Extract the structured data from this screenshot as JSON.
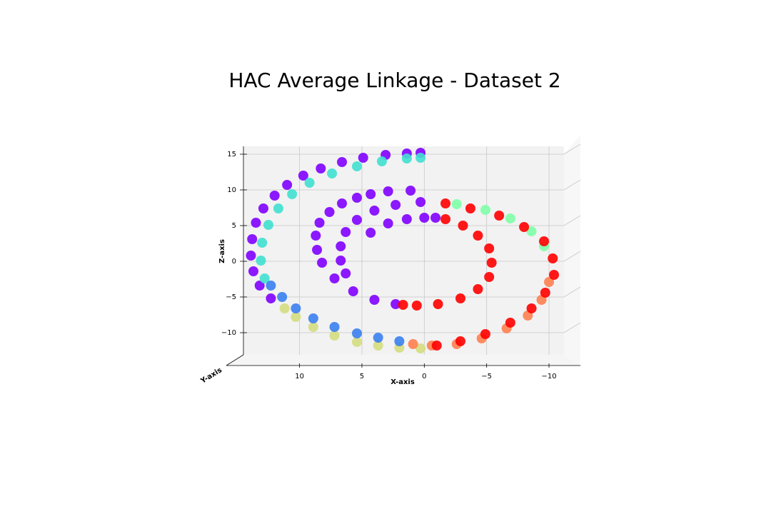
{
  "chart_data": {
    "type": "scatter",
    "title": "HAC Average Linkage - Dataset 2",
    "x_label": "X-axis",
    "y_label": "Y-axis",
    "z_label": "Z-axis",
    "xlim": [
      14.5,
      -11.2
    ],
    "xticks": [
      10,
      5,
      0,
      {
        "value": -5,
        "label": "−5"
      },
      {
        "value": -10,
        "label": "−10"
      }
    ],
    "ylim": [
      -13.1,
      16.1
    ],
    "yticks": [
      {
        "value": -10,
        "label": "−10"
      },
      {
        "value": -5,
        "label": "−5"
      },
      0,
      5,
      10,
      15
    ],
    "grid": true,
    "series": [
      {
        "color": "#8000ff",
        "x": [
          4.3,
          2.9,
          1.4,
          0,
          -0.9,
          2.3,
          4.0,
          5.7,
          7.2,
          8.2,
          8.6,
          8.7,
          8.4,
          7.6,
          6.6,
          5.4,
          4.3,
          2.9,
          1.1,
          6.3,
          6.7,
          6.7,
          6.3,
          5.4,
          4.0,
          2.3,
          0.3,
          12.3,
          13.2,
          13.7,
          13.9,
          13.8,
          13.5,
          12.9,
          12.0,
          11.0,
          9.7,
          8.3,
          6.6,
          4.9,
          3.1,
          1.4,
          0.3
        ],
        "y": [
          4.0,
          5.3,
          5.9,
          6.1,
          6.1,
          -6.0,
          -5.4,
          -4.2,
          -2.4,
          -0.2,
          1.6,
          3.6,
          5.4,
          6.9,
          8.1,
          8.9,
          9.4,
          9.8,
          9.9,
          -1.7,
          0.1,
          2.1,
          4.1,
          5.8,
          7.1,
          7.9,
          8.3,
          -5.2,
          -3.4,
          -1.4,
          0.8,
          3.1,
          5.4,
          7.4,
          9.2,
          10.7,
          12.0,
          13.0,
          13.9,
          14.5,
          14.9,
          15.1,
          15.2
        ]
      },
      {
        "color": "#40e0d0",
        "x": [
          12.8,
          13.1,
          13.0,
          12.5,
          11.7,
          10.6,
          9.2,
          7.4,
          5.4,
          3.4,
          1.4,
          0.3
        ],
        "y": [
          -2.4,
          0.1,
          2.6,
          5.1,
          7.4,
          9.4,
          11.0,
          12.3,
          13.3,
          14.0,
          14.4,
          14.5
        ]
      },
      {
        "color": "#80ffa8",
        "x": [
          -2.6,
          -4.9,
          -6.9,
          -8.6,
          -9.6
        ],
        "y": [
          8.0,
          7.2,
          6.0,
          4.2,
          2.1
        ]
      },
      {
        "color": "#d4dd80",
        "x": [
          0.3,
          2.0,
          3.7,
          5.4,
          7.2,
          8.9,
          10.3,
          11.2
        ],
        "y": [
          -12.2,
          -12.1,
          -11.8,
          -11.3,
          -10.4,
          -9.2,
          -7.8,
          -6.6
        ]
      },
      {
        "color": "#3a80f0",
        "x": [
          2.0,
          3.7,
          5.4,
          7.2,
          8.9,
          10.3,
          11.4,
          12.3
        ],
        "y": [
          -11.2,
          -10.7,
          -10.1,
          -9.2,
          -8.0,
          -6.6,
          -5.0,
          -3.4
        ]
      },
      {
        "color": "#ff8050",
        "x": [
          -10.0,
          -9.4,
          -8.3,
          -6.6,
          -4.6,
          -2.6,
          -0.6,
          0.9
        ],
        "y": [
          -2.9,
          -5.4,
          -7.6,
          -9.4,
          -10.8,
          -11.6,
          -11.8,
          -11.6
        ]
      },
      {
        "color": "#ff0000",
        "x": [
          -1.7,
          -3.1,
          -4.3,
          -5.2,
          -5.4,
          -5.2,
          -4.3,
          -2.9,
          -1.1,
          0.6,
          1.7,
          -1.7,
          -3.7,
          -6.0,
          -8.0,
          -9.6,
          -10.3,
          -10.4,
          -9.7,
          -8.6,
          -6.9,
          -4.9,
          -2.9,
          -1.0
        ],
        "y": [
          5.9,
          5.0,
          3.6,
          1.8,
          -0.2,
          -2.2,
          -3.9,
          -5.2,
          -6.0,
          -6.2,
          -6.1,
          8.1,
          7.4,
          6.4,
          4.8,
          2.8,
          0.4,
          -1.9,
          -4.4,
          -6.6,
          -8.6,
          -10.2,
          -11.2,
          -11.8
        ]
      }
    ]
  }
}
